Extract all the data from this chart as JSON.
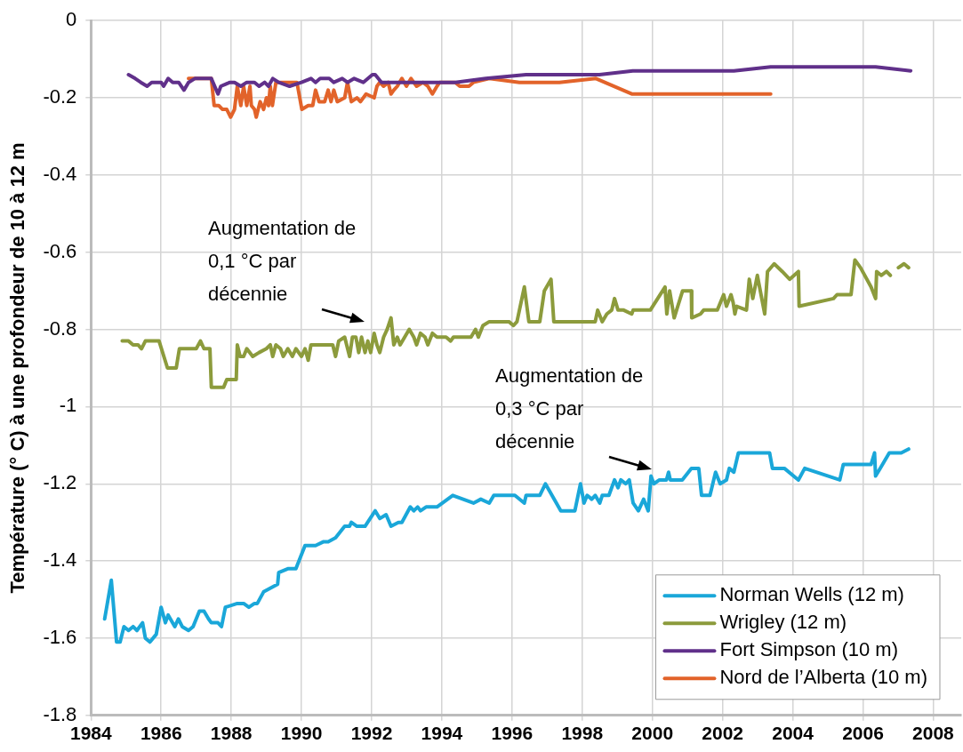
{
  "chart_data": {
    "type": "line",
    "ylabel": "Température (° C) à une profondeur de 10 à 12 m",
    "xlim": [
      1984,
      2008.8
    ],
    "xticks": [
      1984,
      1986,
      1988,
      1990,
      1992,
      1994,
      1996,
      1998,
      2000,
      2002,
      2004,
      2006,
      2008
    ],
    "ylim": [
      -1.8,
      0
    ],
    "yticks": [
      -1.8,
      -1.6,
      -1.4,
      -1.2,
      -1,
      -0.8,
      -0.6,
      -0.4,
      -0.2,
      0
    ],
    "grid": true,
    "legend": "bottom right",
    "marker": "none",
    "line_style": "solid",
    "annotations": [
      "Augmentation de 0,1 °C par décennie",
      "Augmentation de 0,3 °C par décennie"
    ],
    "series": [
      {
        "name": "Norman Wells (12 m)",
        "color": "#1aa7d9",
        "x": [
          1984.39,
          1984.58,
          1984.73,
          1984.83,
          1984.94,
          1985.07,
          1985.2,
          1985.31,
          1985.47,
          1985.55,
          1985.68,
          1985.86,
          1986.0,
          1986.12,
          1986.2,
          1986.39,
          1986.49,
          1986.6,
          1986.78,
          1986.91,
          1987.09,
          1987.22,
          1987.35,
          1987.43,
          1987.62,
          1987.72,
          1987.83,
          1988.17,
          1988.35,
          1988.5,
          1988.66,
          1988.74,
          1988.92,
          1989.32,
          1989.35,
          1989.61,
          1989.84,
          1990.1,
          1990.4,
          1990.63,
          1990.76,
          1990.97,
          1991.23,
          1991.37,
          1991.42,
          1991.58,
          1991.81,
          1992.1,
          1992.23,
          1992.41,
          1992.55,
          1992.76,
          1992.86,
          1993.1,
          1993.2,
          1993.31,
          1993.39,
          1993.55,
          1993.86,
          1994.31,
          1994.9,
          1995.11,
          1995.35,
          1995.48,
          1996.08,
          1996.35,
          1996.4,
          1996.79,
          1996.95,
          1997.39,
          1997.79,
          1997.95,
          1998.05,
          1998.14,
          1998.27,
          1998.37,
          1998.5,
          1998.57,
          1998.76,
          1998.92,
          1999.02,
          1999.1,
          1999.24,
          1999.34,
          1999.45,
          1999.6,
          1999.75,
          1999.88,
          1999.96,
          2000.04,
          2000.2,
          2000.4,
          2000.46,
          2000.51,
          2000.85,
          2001.11,
          2001.32,
          2001.4,
          2001.64,
          2001.8,
          2001.93,
          2002.11,
          2002.19,
          2002.32,
          2002.45,
          2003.34,
          2003.42,
          2003.76,
          2004.16,
          2004.34,
          2005.34,
          2005.44,
          2006.23,
          2006.33,
          2006.36,
          2006.49,
          2006.75,
          2007.09,
          2007.3
        ],
        "values": [
          -1.55,
          -1.45,
          -1.61,
          -1.61,
          -1.57,
          -1.58,
          -1.57,
          -1.58,
          -1.56,
          -1.6,
          -1.61,
          -1.59,
          -1.52,
          -1.56,
          -1.54,
          -1.57,
          -1.55,
          -1.57,
          -1.58,
          -1.57,
          -1.53,
          -1.53,
          -1.55,
          -1.56,
          -1.56,
          -1.57,
          -1.52,
          -1.51,
          -1.51,
          -1.52,
          -1.51,
          -1.51,
          -1.48,
          -1.46,
          -1.43,
          -1.42,
          -1.42,
          -1.36,
          -1.36,
          -1.35,
          -1.35,
          -1.34,
          -1.31,
          -1.31,
          -1.3,
          -1.31,
          -1.31,
          -1.27,
          -1.29,
          -1.28,
          -1.31,
          -1.3,
          -1.3,
          -1.26,
          -1.27,
          -1.26,
          -1.27,
          -1.26,
          -1.26,
          -1.23,
          -1.25,
          -1.24,
          -1.25,
          -1.23,
          -1.23,
          -1.25,
          -1.23,
          -1.23,
          -1.2,
          -1.27,
          -1.27,
          -1.2,
          -1.25,
          -1.23,
          -1.24,
          -1.23,
          -1.25,
          -1.23,
          -1.23,
          -1.19,
          -1.21,
          -1.19,
          -1.2,
          -1.19,
          -1.25,
          -1.27,
          -1.24,
          -1.27,
          -1.18,
          -1.2,
          -1.19,
          -1.19,
          -1.17,
          -1.19,
          -1.19,
          -1.16,
          -1.16,
          -1.23,
          -1.23,
          -1.17,
          -1.2,
          -1.19,
          -1.16,
          -1.17,
          -1.12,
          -1.12,
          -1.16,
          -1.16,
          -1.19,
          -1.16,
          -1.19,
          -1.15,
          -1.15,
          -1.12,
          -1.18,
          -1.16,
          -1.12,
          -1.12,
          -1.11
        ]
      },
      {
        "name": "Wrigley (12 m)",
        "color": "#8c9b3c",
        "x": [
          1984.89,
          1985.07,
          1985.2,
          1985.34,
          1985.44,
          1985.55,
          1985.94,
          1986.18,
          1986.43,
          1986.52,
          1987.0,
          1987.12,
          1987.22,
          1987.39,
          1987.43,
          1987.78,
          1987.87,
          1988.14,
          1988.17,
          1988.25,
          1988.35,
          1988.44,
          1988.61,
          1988.79,
          1989.0,
          1989.11,
          1989.18,
          1989.27,
          1989.4,
          1989.48,
          1989.61,
          1989.74,
          1989.84,
          1990.0,
          1990.1,
          1990.19,
          1990.27,
          1990.89,
          1990.97,
          1991.06,
          1991.23,
          1991.37,
          1991.45,
          1991.55,
          1991.63,
          1991.71,
          1991.81,
          1991.89,
          1991.97,
          1992.07,
          1992.15,
          1992.23,
          1992.34,
          1992.44,
          1992.55,
          1992.63,
          1992.73,
          1992.81,
          1992.94,
          1993.07,
          1993.2,
          1993.28,
          1993.39,
          1993.52,
          1993.6,
          1993.73,
          1993.86,
          1994.12,
          1994.25,
          1994.33,
          1994.83,
          1994.96,
          1995.04,
          1995.17,
          1995.35,
          1995.91,
          1996.04,
          1996.14,
          1996.35,
          1996.48,
          1996.79,
          1996.92,
          1997.11,
          1997.19,
          1998.37,
          1998.44,
          1998.57,
          1998.7,
          1998.84,
          1998.92,
          1999.02,
          1999.18,
          1999.41,
          1999.45,
          1999.94,
          2000.36,
          2000.41,
          2000.49,
          2000.62,
          2000.86,
          2001.11,
          2001.12,
          2001.37,
          2001.46,
          2001.85,
          2002.03,
          2002.11,
          2002.24,
          2002.3,
          2002.35,
          2002.4,
          2002.68,
          2002.76,
          2002.86,
          2002.99,
          2003.2,
          2003.28,
          2003.47,
          2003.7,
          2003.91,
          2004.16,
          2004.18,
          2005.16,
          2005.26,
          2005.66,
          2005.77,
          2005.93,
          2006.23,
          2006.36,
          2006.39,
          2006.52,
          2006.67,
          2006.78,
          2006.9,
          2007.01,
          2007.17,
          2007.3
        ],
        "values": [
          -0.83,
          -0.83,
          -0.84,
          -0.84,
          -0.85,
          -0.83,
          -0.83,
          -0.9,
          -0.9,
          -0.85,
          -0.85,
          -0.83,
          -0.85,
          -0.85,
          -0.95,
          -0.95,
          -0.93,
          -0.93,
          -0.84,
          -0.87,
          -0.87,
          -0.85,
          -0.87,
          -0.86,
          -0.85,
          -0.84,
          -0.87,
          -0.84,
          -0.85,
          -0.87,
          -0.85,
          -0.87,
          -0.85,
          -0.87,
          -0.85,
          -0.88,
          -0.84,
          -0.84,
          -0.87,
          -0.83,
          -0.82,
          -0.87,
          -0.82,
          -0.82,
          -0.86,
          -0.82,
          -0.86,
          -0.83,
          -0.86,
          -0.81,
          -0.84,
          -0.86,
          -0.82,
          -0.8,
          -0.77,
          -0.84,
          -0.82,
          -0.84,
          -0.82,
          -0.8,
          -0.82,
          -0.84,
          -0.81,
          -0.82,
          -0.84,
          -0.81,
          -0.82,
          -0.82,
          -0.83,
          -0.82,
          -0.82,
          -0.8,
          -0.82,
          -0.79,
          -0.78,
          -0.78,
          -0.79,
          -0.78,
          -0.69,
          -0.78,
          -0.78,
          -0.7,
          -0.67,
          -0.78,
          -0.78,
          -0.75,
          -0.78,
          -0.76,
          -0.75,
          -0.72,
          -0.75,
          -0.75,
          -0.76,
          -0.75,
          -0.75,
          -0.69,
          -0.76,
          -0.7,
          -0.77,
          -0.7,
          -0.7,
          -0.77,
          -0.76,
          -0.75,
          -0.75,
          -0.71,
          -0.74,
          -0.71,
          -0.73,
          -0.76,
          -0.74,
          -0.75,
          -0.67,
          -0.72,
          -0.66,
          -0.76,
          -0.65,
          -0.63,
          -0.65,
          -0.67,
          -0.65,
          -0.74,
          -0.72,
          -0.71,
          -0.71,
          -0.62,
          -0.64,
          -0.69,
          -0.72,
          -0.65,
          -0.66,
          -0.65,
          -0.66,
          null,
          -0.64,
          -0.63,
          -0.64
        ]
      },
      {
        "name": "Fort Simpson (10 m)",
        "color": "#60308a",
        "x": [
          1985.07,
          1985.26,
          1985.42,
          1985.6,
          1985.73,
          1986.0,
          1986.07,
          1986.2,
          1986.33,
          1986.5,
          1986.65,
          1986.78,
          1986.96,
          1987.3,
          1987.43,
          1987.62,
          1987.7,
          1987.96,
          1988.09,
          1988.27,
          1988.44,
          1988.66,
          1988.79,
          1988.95,
          1989.06,
          1989.18,
          1989.35,
          1989.66,
          1990.0,
          1990.27,
          1990.4,
          1990.53,
          1990.79,
          1990.92,
          1991.16,
          1991.31,
          1991.5,
          1991.76,
          1992.02,
          1992.1,
          1992.28,
          1994.38,
          1995.25,
          1996.4,
          1998.49,
          1999.44,
          2002.32,
          2003.37,
          2006.36,
          2007.36
        ],
        "values": [
          -0.14,
          -0.15,
          -0.16,
          -0.17,
          -0.16,
          -0.16,
          -0.17,
          -0.15,
          -0.16,
          -0.16,
          -0.18,
          -0.16,
          -0.15,
          -0.15,
          -0.15,
          -0.19,
          -0.17,
          -0.16,
          -0.16,
          -0.17,
          -0.16,
          -0.16,
          -0.17,
          -0.16,
          -0.17,
          -0.15,
          -0.16,
          -0.17,
          -0.16,
          -0.15,
          -0.16,
          -0.15,
          -0.15,
          -0.16,
          -0.15,
          -0.16,
          -0.15,
          -0.16,
          -0.14,
          -0.14,
          -0.16,
          -0.16,
          -0.15,
          -0.14,
          -0.14,
          -0.13,
          -0.13,
          -0.12,
          -0.12,
          -0.13
        ]
      },
      {
        "name": "Nord de l’Alberta (10 m)",
        "color": "#e2632a",
        "x": [
          1986.78,
          1987.12,
          1987.35,
          1987.43,
          1987.51,
          1987.64,
          1987.75,
          1987.87,
          1987.98,
          1988.09,
          1988.17,
          1988.27,
          1988.35,
          1988.44,
          1988.53,
          1988.57,
          1988.66,
          1988.71,
          1988.82,
          1988.92,
          1989.0,
          1989.06,
          1989.11,
          1989.17,
          1989.27,
          1989.87,
          1990.01,
          1990.19,
          1990.32,
          1990.4,
          1990.5,
          1990.66,
          1990.76,
          1990.84,
          1990.92,
          1991.02,
          1991.23,
          1991.31,
          1991.42,
          1991.58,
          1991.68,
          1991.84,
          1992.07,
          1992.15,
          1992.23,
          1992.34,
          1992.47,
          1992.55,
          1992.63,
          1992.73,
          1992.86,
          1992.99,
          1993.12,
          1993.28,
          1993.46,
          1993.6,
          1993.73,
          1993.86,
          1993.94,
          1994.38,
          1994.51,
          1994.77,
          1994.9,
          1995.35,
          1996.21,
          1997.35,
          1998.39,
          1999.41,
          2003.37
        ],
        "values": [
          -0.15,
          -0.15,
          -0.15,
          -0.15,
          -0.22,
          -0.22,
          -0.23,
          -0.23,
          -0.25,
          -0.23,
          -0.17,
          -0.22,
          -0.17,
          -0.22,
          -0.17,
          -0.22,
          -0.23,
          -0.25,
          -0.21,
          -0.23,
          -0.2,
          -0.22,
          -0.17,
          -0.22,
          -0.16,
          -0.16,
          -0.23,
          -0.22,
          -0.22,
          -0.18,
          -0.21,
          -0.21,
          -0.18,
          -0.21,
          -0.18,
          -0.21,
          -0.2,
          -0.16,
          -0.21,
          -0.2,
          -0.21,
          -0.19,
          -0.2,
          -0.17,
          -0.16,
          -0.17,
          -0.16,
          -0.19,
          -0.18,
          -0.17,
          -0.15,
          -0.17,
          -0.15,
          -0.17,
          -0.16,
          -0.17,
          -0.19,
          -0.17,
          -0.16,
          -0.16,
          -0.17,
          -0.17,
          -0.16,
          -0.15,
          -0.16,
          -0.16,
          -0.15,
          -0.19,
          -0.19
        ]
      }
    ]
  }
}
